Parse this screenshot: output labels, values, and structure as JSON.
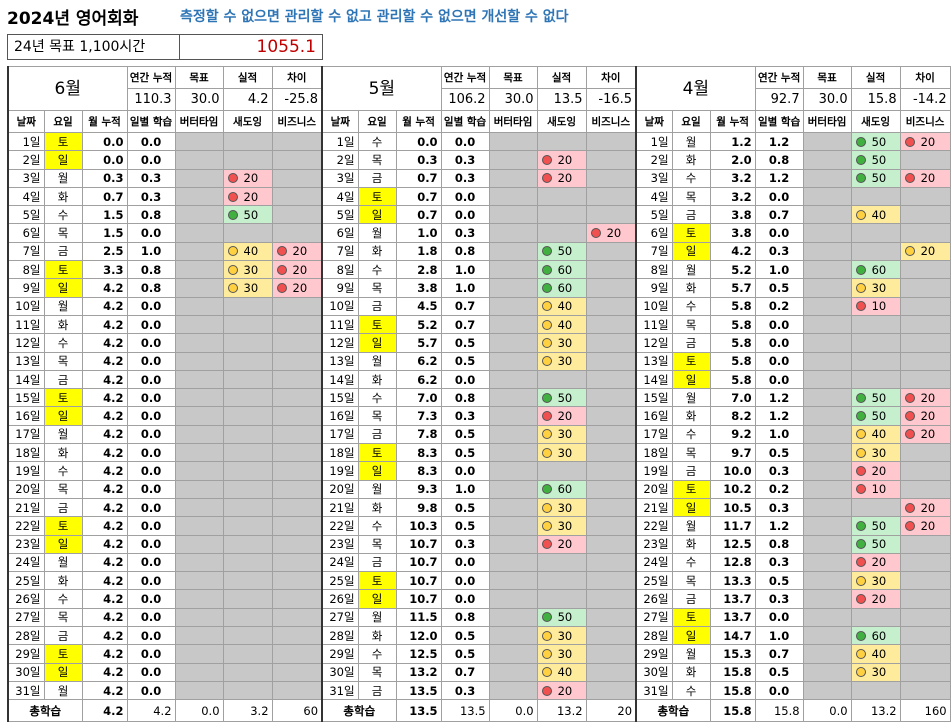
{
  "header": {
    "title": "2024년 영어회화",
    "motto": "측정할 수 없으면 관리할 수 없고 관리할 수 없으면 개선할 수 없다",
    "goal_label": "24년 목표 1,100시간",
    "goal_total": "1055.1"
  },
  "columns": [
    "날짜",
    "요일",
    "월 누적",
    "일별 학습",
    "버터타임",
    "새도잉",
    "비즈니스"
  ],
  "summary_labels": [
    "연간 누적",
    "목표",
    "실적",
    "차이"
  ],
  "total_label": "총학습",
  "months": [
    {
      "month": "6월",
      "summary": [
        "110.3",
        "30.0",
        "4.2",
        "-25.8"
      ],
      "total": [
        "4.2",
        "4.2",
        "0.0",
        "3.2",
        "60"
      ],
      "rows": [
        {
          "date": "1일",
          "day": "토",
          "weekend": true,
          "cum": "0.0",
          "daily": "0.0"
        },
        {
          "date": "2일",
          "day": "일",
          "weekend": true,
          "cum": "0.0",
          "daily": "0.0"
        },
        {
          "date": "3일",
          "day": "월",
          "cum": "0.3",
          "daily": "0.3",
          "shadowing": {
            "value": "20",
            "color": "red"
          }
        },
        {
          "date": "4일",
          "day": "화",
          "cum": "0.7",
          "daily": "0.3",
          "shadowing": {
            "value": "20",
            "color": "red"
          }
        },
        {
          "date": "5일",
          "day": "수",
          "cum": "1.5",
          "daily": "0.8",
          "shadowing": {
            "value": "50",
            "color": "green"
          }
        },
        {
          "date": "6일",
          "day": "목",
          "cum": "1.5",
          "daily": "0.0"
        },
        {
          "date": "7일",
          "day": "금",
          "cum": "2.5",
          "daily": "1.0",
          "shadowing": {
            "value": "40",
            "color": "yellow"
          },
          "business": {
            "value": "20",
            "color": "red"
          }
        },
        {
          "date": "8일",
          "day": "토",
          "weekend": true,
          "cum": "3.3",
          "daily": "0.8",
          "shadowing": {
            "value": "30",
            "color": "yellow"
          },
          "business": {
            "value": "20",
            "color": "red"
          }
        },
        {
          "date": "9일",
          "day": "일",
          "weekend": true,
          "cum": "4.2",
          "daily": "0.8",
          "shadowing": {
            "value": "30",
            "color": "yellow"
          },
          "business": {
            "value": "20",
            "color": "red"
          }
        },
        {
          "date": "10일",
          "day": "월",
          "cum": "4.2",
          "daily": "0.0"
        },
        {
          "date": "11일",
          "day": "화",
          "cum": "4.2",
          "daily": "0.0"
        },
        {
          "date": "12일",
          "day": "수",
          "cum": "4.2",
          "daily": "0.0"
        },
        {
          "date": "13일",
          "day": "목",
          "cum": "4.2",
          "daily": "0.0"
        },
        {
          "date": "14일",
          "day": "금",
          "cum": "4.2",
          "daily": "0.0"
        },
        {
          "date": "15일",
          "day": "토",
          "weekend": true,
          "cum": "4.2",
          "daily": "0.0"
        },
        {
          "date": "16일",
          "day": "일",
          "weekend": true,
          "cum": "4.2",
          "daily": "0.0"
        },
        {
          "date": "17일",
          "day": "월",
          "cum": "4.2",
          "daily": "0.0"
        },
        {
          "date": "18일",
          "day": "화",
          "cum": "4.2",
          "daily": "0.0"
        },
        {
          "date": "19일",
          "day": "수",
          "cum": "4.2",
          "daily": "0.0"
        },
        {
          "date": "20일",
          "day": "목",
          "cum": "4.2",
          "daily": "0.0"
        },
        {
          "date": "21일",
          "day": "금",
          "cum": "4.2",
          "daily": "0.0"
        },
        {
          "date": "22일",
          "day": "토",
          "weekend": true,
          "cum": "4.2",
          "daily": "0.0"
        },
        {
          "date": "23일",
          "day": "일",
          "weekend": true,
          "cum": "4.2",
          "daily": "0.0"
        },
        {
          "date": "24일",
          "day": "월",
          "cum": "4.2",
          "daily": "0.0"
        },
        {
          "date": "25일",
          "day": "화",
          "cum": "4.2",
          "daily": "0.0"
        },
        {
          "date": "26일",
          "day": "수",
          "cum": "4.2",
          "daily": "0.0"
        },
        {
          "date": "27일",
          "day": "목",
          "cum": "4.2",
          "daily": "0.0"
        },
        {
          "date": "28일",
          "day": "금",
          "cum": "4.2",
          "daily": "0.0"
        },
        {
          "date": "29일",
          "day": "토",
          "weekend": true,
          "cum": "4.2",
          "daily": "0.0"
        },
        {
          "date": "30일",
          "day": "일",
          "weekend": true,
          "cum": "4.2",
          "daily": "0.0"
        },
        {
          "date": "31일",
          "day": "월",
          "cum": "4.2",
          "daily": "0.0"
        }
      ]
    },
    {
      "month": "5월",
      "summary": [
        "106.2",
        "30.0",
        "13.5",
        "-16.5"
      ],
      "total": [
        "13.5",
        "13.5",
        "0.0",
        "13.2",
        "20"
      ],
      "rows": [
        {
          "date": "1일",
          "day": "수",
          "cum": "0.0",
          "daily": "0.0"
        },
        {
          "date": "2일",
          "day": "목",
          "cum": "0.3",
          "daily": "0.3",
          "shadowing": {
            "value": "20",
            "color": "red"
          }
        },
        {
          "date": "3일",
          "day": "금",
          "cum": "0.7",
          "daily": "0.3",
          "shadowing": {
            "value": "20",
            "color": "red"
          }
        },
        {
          "date": "4일",
          "day": "토",
          "weekend": true,
          "cum": "0.7",
          "daily": "0.0"
        },
        {
          "date": "5일",
          "day": "일",
          "weekend": true,
          "cum": "0.7",
          "daily": "0.0"
        },
        {
          "date": "6일",
          "day": "월",
          "cum": "1.0",
          "daily": "0.3",
          "business": {
            "value": "20",
            "color": "red"
          }
        },
        {
          "date": "7일",
          "day": "화",
          "cum": "1.8",
          "daily": "0.8",
          "shadowing": {
            "value": "50",
            "color": "green"
          }
        },
        {
          "date": "8일",
          "day": "수",
          "cum": "2.8",
          "daily": "1.0",
          "shadowing": {
            "value": "60",
            "color": "green"
          }
        },
        {
          "date": "9일",
          "day": "목",
          "cum": "3.8",
          "daily": "1.0",
          "shadowing": {
            "value": "60",
            "color": "green"
          }
        },
        {
          "date": "10일",
          "day": "금",
          "cum": "4.5",
          "daily": "0.7",
          "shadowing": {
            "value": "40",
            "color": "yellow"
          }
        },
        {
          "date": "11일",
          "day": "토",
          "weekend": true,
          "cum": "5.2",
          "daily": "0.7",
          "shadowing": {
            "value": "40",
            "color": "yellow"
          }
        },
        {
          "date": "12일",
          "day": "일",
          "weekend": true,
          "cum": "5.7",
          "daily": "0.5",
          "shadowing": {
            "value": "30",
            "color": "yellow"
          }
        },
        {
          "date": "13일",
          "day": "월",
          "cum": "6.2",
          "daily": "0.5",
          "shadowing": {
            "value": "30",
            "color": "yellow"
          }
        },
        {
          "date": "14일",
          "day": "화",
          "cum": "6.2",
          "daily": "0.0"
        },
        {
          "date": "15일",
          "day": "수",
          "cum": "7.0",
          "daily": "0.8",
          "shadowing": {
            "value": "50",
            "color": "green"
          }
        },
        {
          "date": "16일",
          "day": "목",
          "cum": "7.3",
          "daily": "0.3",
          "shadowing": {
            "value": "20",
            "color": "red"
          }
        },
        {
          "date": "17일",
          "day": "금",
          "cum": "7.8",
          "daily": "0.5",
          "shadowing": {
            "value": "30",
            "color": "yellow"
          }
        },
        {
          "date": "18일",
          "day": "토",
          "weekend": true,
          "cum": "8.3",
          "daily": "0.5",
          "shadowing": {
            "value": "30",
            "color": "yellow"
          }
        },
        {
          "date": "19일",
          "day": "일",
          "weekend": true,
          "cum": "8.3",
          "daily": "0.0"
        },
        {
          "date": "20일",
          "day": "월",
          "cum": "9.3",
          "daily": "1.0",
          "shadowing": {
            "value": "60",
            "color": "green"
          }
        },
        {
          "date": "21일",
          "day": "화",
          "cum": "9.8",
          "daily": "0.5",
          "shadowing": {
            "value": "30",
            "color": "yellow"
          }
        },
        {
          "date": "22일",
          "day": "수",
          "cum": "10.3",
          "daily": "0.5",
          "shadowing": {
            "value": "30",
            "color": "yellow"
          }
        },
        {
          "date": "23일",
          "day": "목",
          "cum": "10.7",
          "daily": "0.3",
          "shadowing": {
            "value": "20",
            "color": "red"
          }
        },
        {
          "date": "24일",
          "day": "금",
          "cum": "10.7",
          "daily": "0.0"
        },
        {
          "date": "25일",
          "day": "토",
          "weekend": true,
          "cum": "10.7",
          "daily": "0.0"
        },
        {
          "date": "26일",
          "day": "일",
          "weekend": true,
          "cum": "10.7",
          "daily": "0.0"
        },
        {
          "date": "27일",
          "day": "월",
          "cum": "11.5",
          "daily": "0.8",
          "shadowing": {
            "value": "50",
            "color": "green"
          }
        },
        {
          "date": "28일",
          "day": "화",
          "cum": "12.0",
          "daily": "0.5",
          "shadowing": {
            "value": "30",
            "color": "yellow"
          }
        },
        {
          "date": "29일",
          "day": "수",
          "cum": "12.5",
          "daily": "0.5",
          "shadowing": {
            "value": "30",
            "color": "yellow"
          }
        },
        {
          "date": "30일",
          "day": "목",
          "cum": "13.2",
          "daily": "0.7",
          "shadowing": {
            "value": "40",
            "color": "yellow"
          }
        },
        {
          "date": "31일",
          "day": "금",
          "cum": "13.5",
          "daily": "0.3",
          "shadowing": {
            "value": "20",
            "color": "red"
          }
        }
      ]
    },
    {
      "month": "4월",
      "summary": [
        "92.7",
        "30.0",
        "15.8",
        "-14.2"
      ],
      "total": [
        "15.8",
        "15.8",
        "0.0",
        "13.2",
        "160"
      ],
      "rows": [
        {
          "date": "1일",
          "day": "월",
          "cum": "1.2",
          "daily": "1.2",
          "shadowing": {
            "value": "50",
            "color": "green"
          },
          "business": {
            "value": "20",
            "color": "red"
          }
        },
        {
          "date": "2일",
          "day": "화",
          "cum": "2.0",
          "daily": "0.8",
          "shadowing": {
            "value": "50",
            "color": "green"
          }
        },
        {
          "date": "3일",
          "day": "수",
          "cum": "3.2",
          "daily": "1.2",
          "shadowing": {
            "value": "50",
            "color": "green"
          },
          "business": {
            "value": "20",
            "color": "red"
          }
        },
        {
          "date": "4일",
          "day": "목",
          "cum": "3.2",
          "daily": "0.0"
        },
        {
          "date": "5일",
          "day": "금",
          "cum": "3.8",
          "daily": "0.7",
          "shadowing": {
            "value": "40",
            "color": "yellow"
          }
        },
        {
          "date": "6일",
          "day": "토",
          "weekend": true,
          "cum": "3.8",
          "daily": "0.0"
        },
        {
          "date": "7일",
          "day": "일",
          "weekend": true,
          "cum": "4.2",
          "daily": "0.3",
          "business": {
            "value": "20",
            "color": "yellow"
          }
        },
        {
          "date": "8일",
          "day": "월",
          "cum": "5.2",
          "daily": "1.0",
          "shadowing": {
            "value": "60",
            "color": "green"
          }
        },
        {
          "date": "9일",
          "day": "화",
          "cum": "5.7",
          "daily": "0.5",
          "shadowing": {
            "value": "30",
            "color": "yellow"
          }
        },
        {
          "date": "10일",
          "day": "수",
          "cum": "5.8",
          "daily": "0.2",
          "shadowing": {
            "value": "10",
            "color": "red"
          }
        },
        {
          "date": "11일",
          "day": "목",
          "cum": "5.8",
          "daily": "0.0"
        },
        {
          "date": "12일",
          "day": "금",
          "cum": "5.8",
          "daily": "0.0"
        },
        {
          "date": "13일",
          "day": "토",
          "weekend": true,
          "cum": "5.8",
          "daily": "0.0"
        },
        {
          "date": "14일",
          "day": "일",
          "weekend": true,
          "cum": "5.8",
          "daily": "0.0"
        },
        {
          "date": "15일",
          "day": "월",
          "cum": "7.0",
          "daily": "1.2",
          "shadowing": {
            "value": "50",
            "color": "green"
          },
          "business": {
            "value": "20",
            "color": "red"
          }
        },
        {
          "date": "16일",
          "day": "화",
          "cum": "8.2",
          "daily": "1.2",
          "shadowing": {
            "value": "50",
            "color": "green"
          },
          "business": {
            "value": "20",
            "color": "red"
          }
        },
        {
          "date": "17일",
          "day": "수",
          "cum": "9.2",
          "daily": "1.0",
          "shadowing": {
            "value": "40",
            "color": "yellow"
          },
          "business": {
            "value": "20",
            "color": "red"
          }
        },
        {
          "date": "18일",
          "day": "목",
          "cum": "9.7",
          "daily": "0.5",
          "shadowing": {
            "value": "30",
            "color": "yellow"
          }
        },
        {
          "date": "19일",
          "day": "금",
          "cum": "10.0",
          "daily": "0.3",
          "shadowing": {
            "value": "20",
            "color": "red"
          }
        },
        {
          "date": "20일",
          "day": "토",
          "weekend": true,
          "cum": "10.2",
          "daily": "0.2",
          "shadowing": {
            "value": "10",
            "color": "red"
          }
        },
        {
          "date": "21일",
          "day": "일",
          "weekend": true,
          "cum": "10.5",
          "daily": "0.3",
          "business": {
            "value": "20",
            "color": "red"
          }
        },
        {
          "date": "22일",
          "day": "월",
          "cum": "11.7",
          "daily": "1.2",
          "shadowing": {
            "value": "50",
            "color": "green"
          },
          "business": {
            "value": "20",
            "color": "red"
          }
        },
        {
          "date": "23일",
          "day": "화",
          "cum": "12.5",
          "daily": "0.8",
          "shadowing": {
            "value": "50",
            "color": "green"
          }
        },
        {
          "date": "24일",
          "day": "수",
          "cum": "12.8",
          "daily": "0.3",
          "shadowing": {
            "value": "20",
            "color": "red"
          }
        },
        {
          "date": "25일",
          "day": "목",
          "cum": "13.3",
          "daily": "0.5",
          "shadowing": {
            "value": "30",
            "color": "yellow"
          }
        },
        {
          "date": "26일",
          "day": "금",
          "cum": "13.7",
          "daily": "0.3",
          "shadowing": {
            "value": "20",
            "color": "red"
          }
        },
        {
          "date": "27일",
          "day": "토",
          "weekend": true,
          "cum": "13.7",
          "daily": "0.0"
        },
        {
          "date": "28일",
          "day": "일",
          "weekend": true,
          "cum": "14.7",
          "daily": "1.0",
          "shadowing": {
            "value": "60",
            "color": "green"
          }
        },
        {
          "date": "29일",
          "day": "월",
          "cum": "15.3",
          "daily": "0.7",
          "shadowing": {
            "value": "40",
            "color": "yellow"
          }
        },
        {
          "date": "30일",
          "day": "화",
          "cum": "15.8",
          "daily": "0.5",
          "shadowing": {
            "value": "30",
            "color": "yellow"
          }
        },
        {
          "date": "31일",
          "day": "수",
          "cum": "15.8",
          "daily": "0.0"
        }
      ]
    }
  ]
}
